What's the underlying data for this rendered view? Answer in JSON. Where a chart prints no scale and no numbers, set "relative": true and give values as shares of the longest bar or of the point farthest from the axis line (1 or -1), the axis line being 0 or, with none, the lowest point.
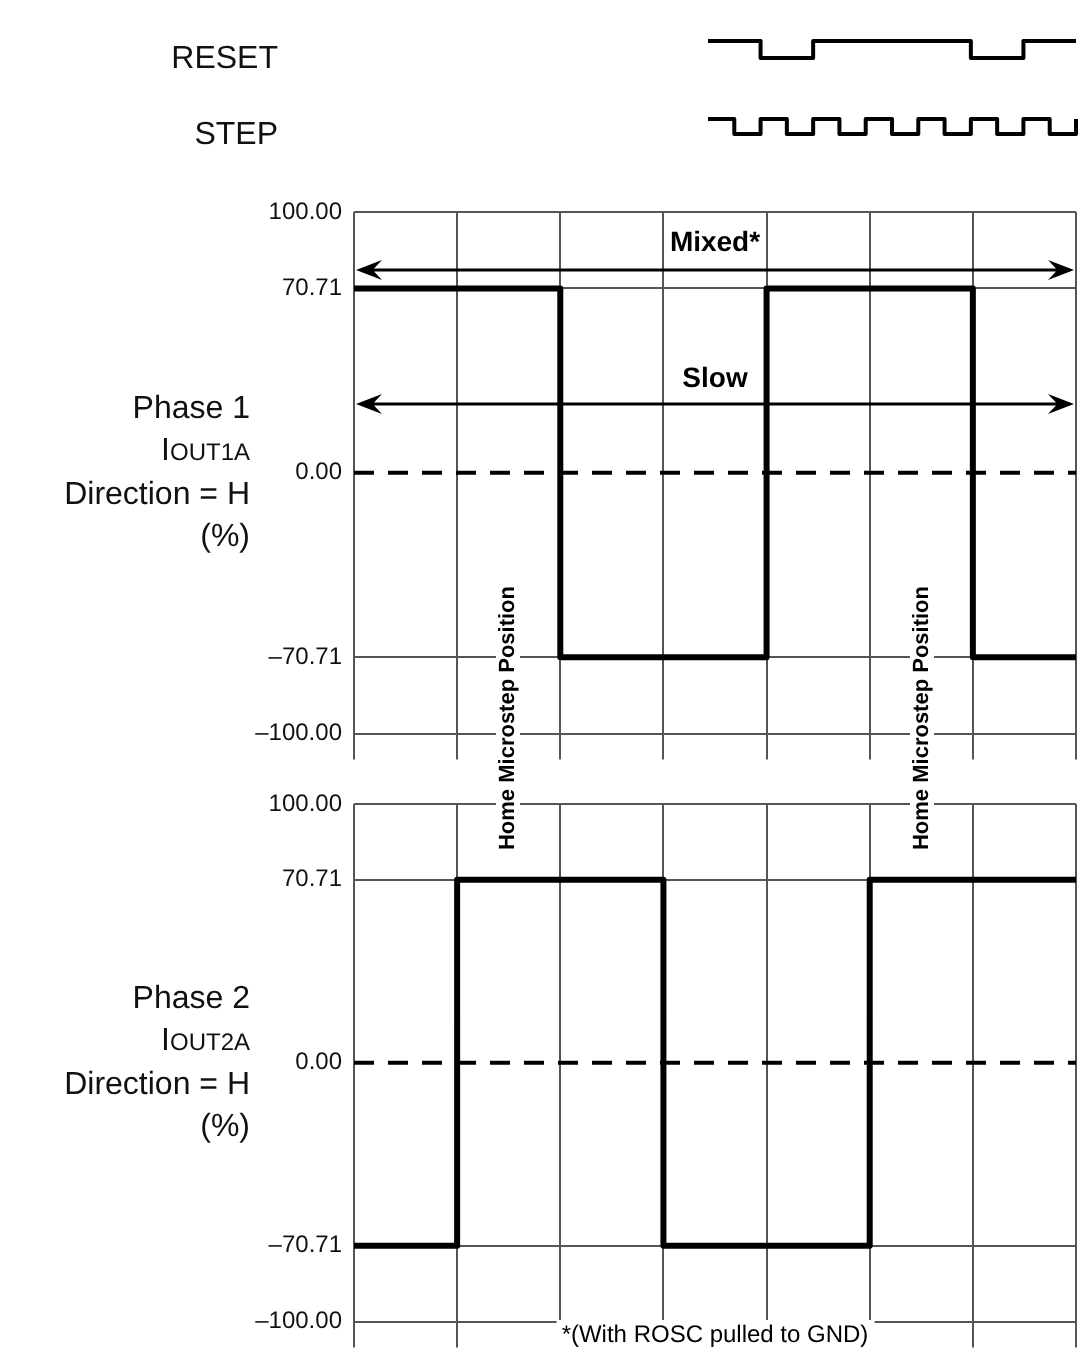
{
  "chart_data": [
    {
      "type": "step",
      "ylabel": "RESET",
      "relative": true,
      "tick_labels": false,
      "color": "#000000",
      "categories": [
        null,
        null,
        null,
        null,
        null,
        null,
        null,
        null,
        null,
        null,
        null,
        null,
        null,
        null,
        null
      ],
      "values": [
        1,
        1,
        0,
        0,
        1,
        1,
        1,
        1,
        1,
        1,
        0,
        0,
        1,
        1,
        1
      ]
    },
    {
      "type": "step",
      "ylabel": "STEP",
      "relative": true,
      "tick_labels": false,
      "color": "#000000",
      "categories": [
        null,
        null,
        null,
        null,
        null,
        null,
        null,
        null,
        null,
        null,
        null,
        null,
        null,
        null,
        null
      ],
      "values": [
        1,
        0,
        1,
        0,
        1,
        0,
        1,
        0,
        1,
        0,
        1,
        0,
        1,
        0,
        1
      ]
    },
    {
      "type": "step",
      "ylabel": "Phase 1\nI$_{OUT1A}$\nDirection = H\n(%)",
      "color": "#000000",
      "grid": true,
      "tick_labels": "y",
      "categories": [
        null,
        null,
        null,
        null,
        null,
        null,
        null,
        null
      ],
      "ylim": [
        -100,
        100
      ],
      "yticks": [
        {
          "value": -100,
          "label": "–100.00"
        },
        {
          "value": -70.71,
          "label": "–70.71"
        },
        {
          "value": 0,
          "label": "0.00"
        },
        {
          "value": 70.71,
          "label": "70.71"
        },
        {
          "value": 100,
          "label": "100.00"
        }
      ],
      "values": [
        70.71,
        70.71,
        -70.71,
        -70.71,
        70.71,
        70.71,
        -70.71,
        -70.71
      ],
      "ref_lines": [
        {
          "axis": "y",
          "value": 0,
          "line_style": "dashed",
          "color": "#000000"
        }
      ],
      "annotations": [
        "Mixed*",
        "Slow",
        "Home Microstep Position",
        "Home Microstep Position"
      ]
    },
    {
      "type": "step",
      "ylabel": "Phase 2\nI$_{OUT2A}$\nDirection = H\n(%)",
      "color": "#000000",
      "grid": true,
      "tick_labels": "y",
      "categories": [
        null,
        null,
        null,
        null,
        null,
        null,
        null,
        null
      ],
      "ylim": [
        -100,
        100
      ],
      "yticks": [
        {
          "value": -100,
          "label": "–100.00"
        },
        {
          "value": -70.71,
          "label": "–70.71"
        },
        {
          "value": 0,
          "label": "0.00"
        },
        {
          "value": 70.71,
          "label": "70.71"
        },
        {
          "value": 100,
          "label": "100.00"
        }
      ],
      "values": [
        -70.71,
        70.71,
        70.71,
        -70.71,
        -70.71,
        70.71,
        70.71,
        70.71
      ],
      "ref_lines": [
        {
          "axis": "y",
          "value": 0,
          "line_style": "dashed",
          "color": "#000000"
        }
      ],
      "annotations": [
        "*(With ROSC pulled to GND)"
      ]
    }
  ]
}
